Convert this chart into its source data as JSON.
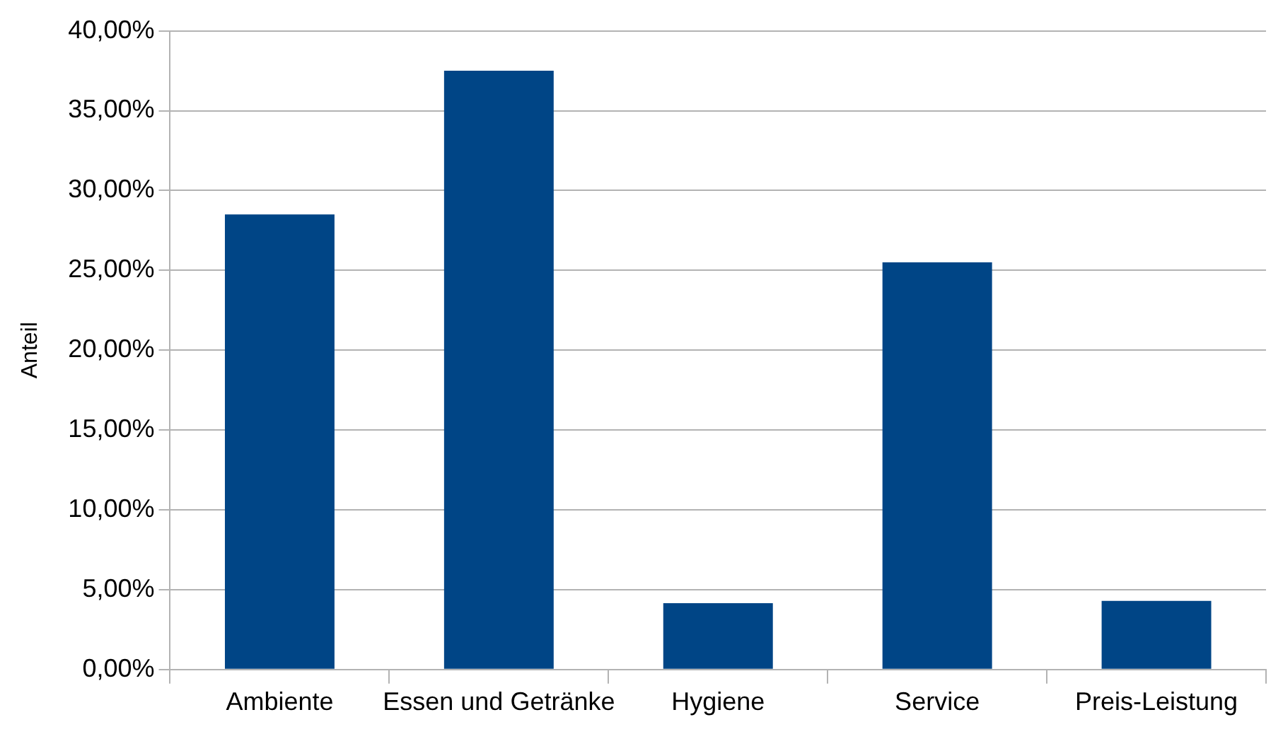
{
  "chart_data": {
    "type": "bar",
    "ylabel": "Anteil",
    "categories": [
      "Ambiente",
      "Essen und Getränke",
      "Hygiene",
      "Service",
      "Preis-Leistung"
    ],
    "values": [
      28.5,
      37.5,
      4.15,
      25.5,
      4.3
    ],
    "color": "#004586",
    "ylim": [
      0,
      40
    ],
    "yticks": [
      {
        "value": 0,
        "label": "0,00%"
      },
      {
        "value": 5,
        "label": "5,00%"
      },
      {
        "value": 10,
        "label": "10,00%"
      },
      {
        "value": 15,
        "label": "15,00%"
      },
      {
        "value": 20,
        "label": "20,00%"
      },
      {
        "value": 25,
        "label": "25,00%"
      },
      {
        "value": 30,
        "label": "30,00%"
      },
      {
        "value": 35,
        "label": "35,00%"
      },
      {
        "value": 40,
        "label": "40,00%"
      }
    ],
    "grid": "y",
    "legend": false
  }
}
